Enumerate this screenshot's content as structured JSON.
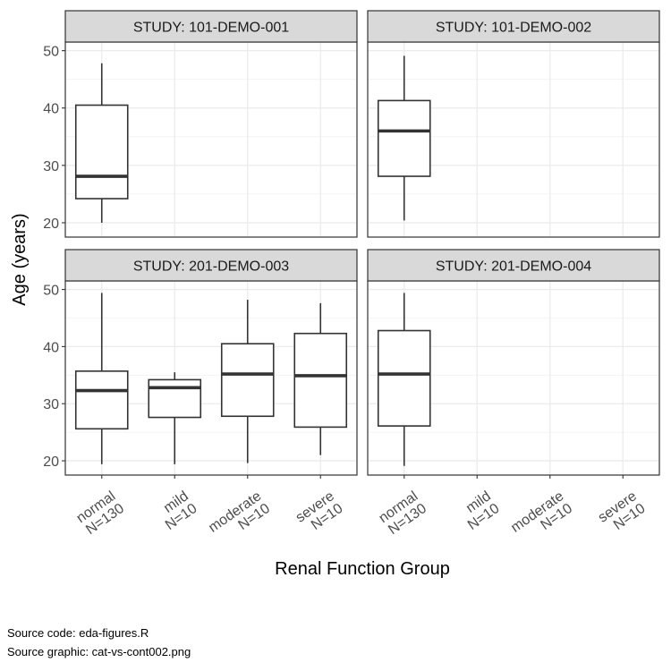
{
  "chart_data": {
    "type": "boxplot",
    "xlabel": "Renal Function Group",
    "ylabel": "Age (years)",
    "ylim": [
      17.5,
      51.5
    ],
    "yticks": [
      20,
      30,
      40,
      50
    ],
    "grid": true,
    "categories": [
      "normal\nN=130",
      "mild\nN=10",
      "moderate\nN=10",
      "severe\nN=10"
    ],
    "facets": [
      {
        "label": "STUDY: 101-DEMO-001",
        "boxes": [
          {
            "category": "normal\nN=130",
            "min": 20,
            "q1": 24.2,
            "median": 28.1,
            "q3": 40.5,
            "max": 47.8
          }
        ]
      },
      {
        "label": "STUDY: 101-DEMO-002",
        "boxes": [
          {
            "category": "normal\nN=130",
            "min": 20.4,
            "q1": 28.1,
            "median": 36.0,
            "q3": 41.3,
            "max": 49.1
          }
        ]
      },
      {
        "label": "STUDY: 201-DEMO-003",
        "boxes": [
          {
            "category": "normal\nN=130",
            "min": 19.4,
            "q1": 25.6,
            "median": 32.3,
            "q3": 35.7,
            "max": 49.4
          },
          {
            "category": "mild\nN=10",
            "min": 19.4,
            "q1": 27.6,
            "median": 32.8,
            "q3": 34.2,
            "max": 35.5
          },
          {
            "category": "moderate\nN=10",
            "min": 19.6,
            "q1": 27.8,
            "median": 35.2,
            "q3": 40.5,
            "max": 48.2
          },
          {
            "category": "severe\nN=10",
            "min": 21.0,
            "q1": 25.9,
            "median": 34.9,
            "q3": 42.3,
            "max": 47.6
          }
        ]
      },
      {
        "label": "STUDY: 201-DEMO-004",
        "boxes": [
          {
            "category": "normal\nN=130",
            "min": 19.1,
            "q1": 26.1,
            "median": 35.2,
            "q3": 42.8,
            "max": 49.4
          }
        ]
      }
    ]
  },
  "footer": {
    "source_code": "Source code: eda-figures.R",
    "source_graphic": "Source graphic: cat-vs-cont002.png"
  }
}
